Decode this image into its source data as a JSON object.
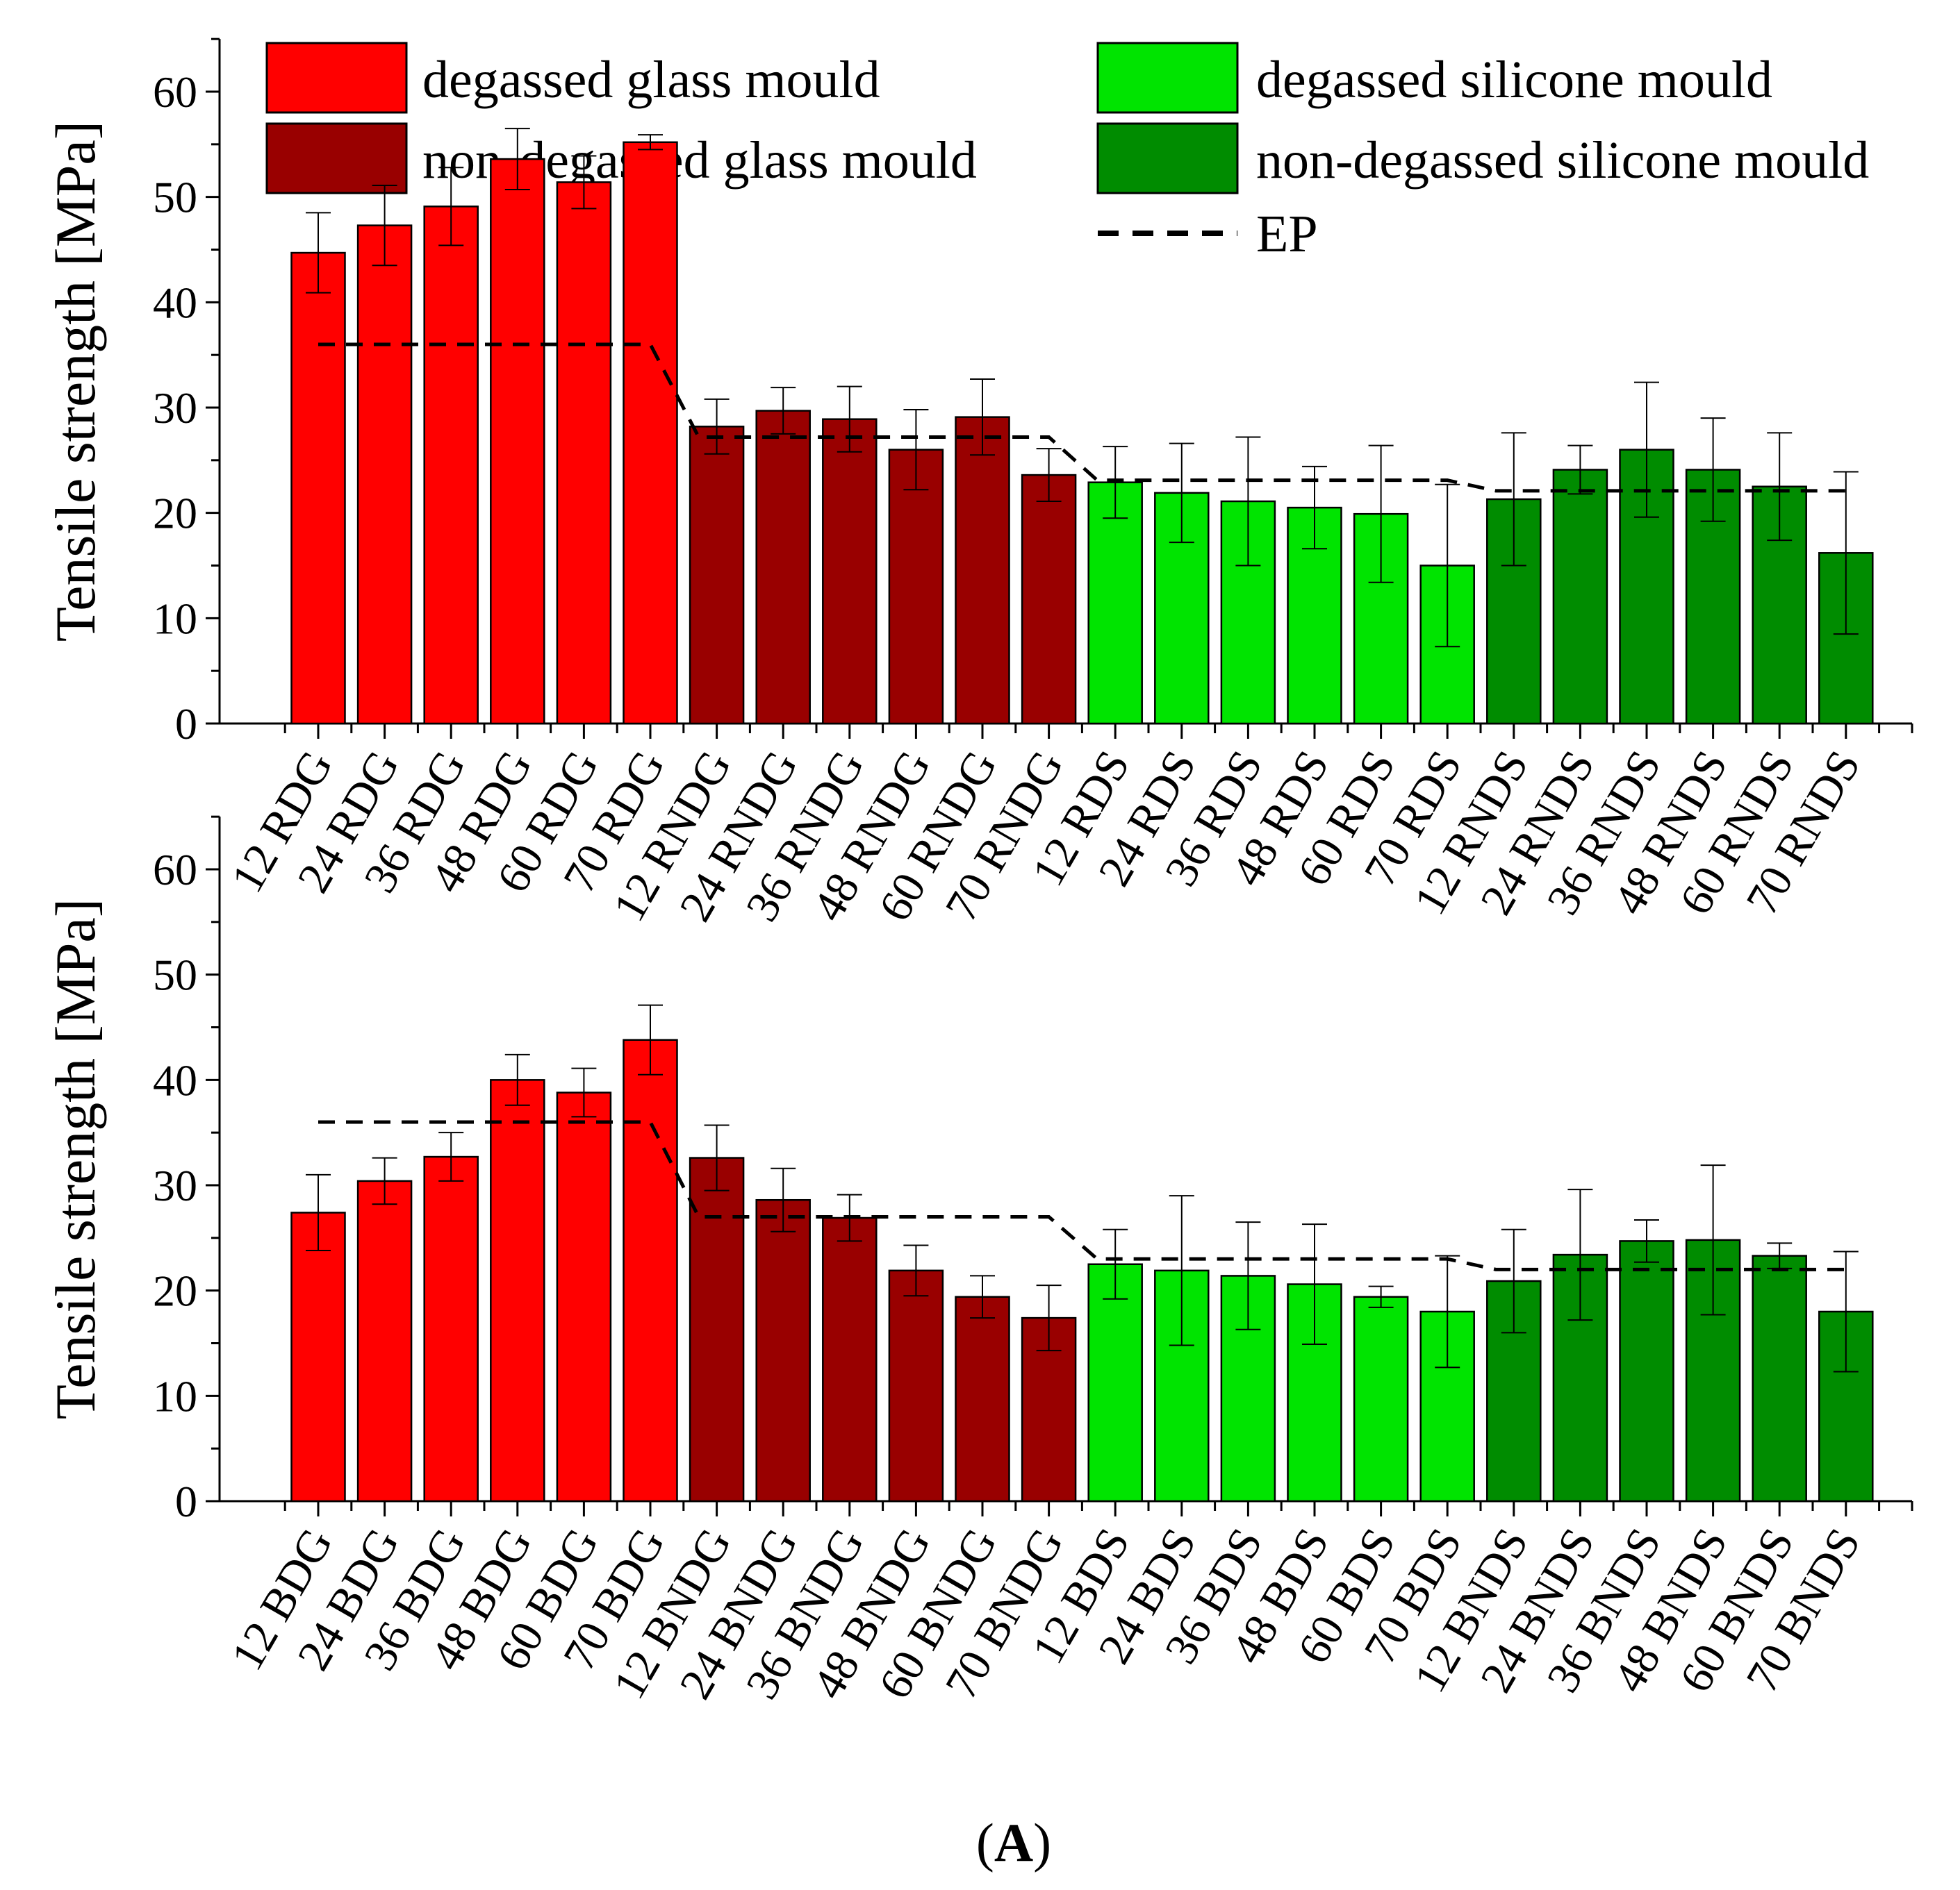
{
  "legend": {
    "items": [
      {
        "key": "DG",
        "label": "degassed glass mould",
        "color": "#ff0000"
      },
      {
        "key": "NDG",
        "label": "non-degassed glass mould",
        "color": "#990000"
      },
      {
        "key": "DS",
        "label": "degassed silicone mould",
        "color": "#00e400"
      },
      {
        "key": "NDS",
        "label": "non-degassed silicone mould",
        "color": "#008c00"
      }
    ],
    "ep_label": "EP"
  },
  "caption": {
    "open": "(",
    "letter": "A",
    "close": ")"
  },
  "chart_data": [
    {
      "type": "bar",
      "ylabel": "Tensile strength [MPa]",
      "xlabel": "",
      "ylim": [
        0,
        65
      ],
      "yticks": [
        "0",
        "10",
        "20",
        "30",
        "40",
        "50",
        "60"
      ],
      "categories": [
        "12 RDG",
        "24 RDG",
        "36 RDG",
        "48 RDG",
        "60 RDG",
        "70 RDG",
        "12 RNDG",
        "24 RNDG",
        "36 RNDG",
        "48 RNDG",
        "60 RNDG",
        "70 RNDG",
        "12 RDS",
        "24 RDS",
        "36 RDS",
        "48 RDS",
        "60 RDS",
        "70 RDS",
        "12 RNDS",
        "24 RNDS",
        "36 RNDS",
        "48 RNDS",
        "60 RNDS",
        "70 RNDS"
      ],
      "groups": [
        "DG",
        "DG",
        "DG",
        "DG",
        "DG",
        "DG",
        "NDG",
        "NDG",
        "NDG",
        "NDG",
        "NDG",
        "NDG",
        "DS",
        "DS",
        "DS",
        "DS",
        "DS",
        "DS",
        "NDS",
        "NDS",
        "NDS",
        "NDS",
        "NDS",
        "NDS"
      ],
      "values": [
        44.7,
        47.3,
        49.1,
        53.6,
        51.4,
        55.2,
        28.2,
        29.7,
        28.9,
        26.0,
        29.1,
        23.6,
        22.9,
        21.9,
        21.1,
        20.5,
        19.9,
        15.0,
        21.3,
        24.1,
        26.0,
        24.1,
        22.5,
        16.2
      ],
      "errors": [
        3.8,
        3.8,
        3.7,
        2.9,
        2.5,
        0.7,
        2.6,
        2.2,
        3.1,
        3.8,
        3.6,
        2.5,
        3.4,
        4.7,
        6.1,
        3.9,
        6.5,
        7.7,
        6.3,
        2.3,
        6.4,
        4.9,
        5.1,
        7.7
      ],
      "ep_line": {
        "name": "EP",
        "steps": [
          36.0,
          27.2,
          23.1,
          22.1
        ]
      }
    },
    {
      "type": "bar",
      "ylabel": "Tensile strength [MPa]",
      "xlabel": "",
      "ylim": [
        0,
        65
      ],
      "yticks": [
        "0",
        "10",
        "20",
        "30",
        "40",
        "50",
        "60"
      ],
      "categories": [
        "12 BDG",
        "24 BDG",
        "36 BDG",
        "48 BDG",
        "60 BDG",
        "70 BDG",
        "12 BNDG",
        "24 BNDG",
        "36 BNDG",
        "48 BNDG",
        "60 BNDG",
        "70 BNDG",
        "12 BDS",
        "24 BDS",
        "36 BDS",
        "48 BDS",
        "60 BDS",
        "70 BDS",
        "12 BNDS",
        "24 BNDS",
        "36 BNDS",
        "48 BNDS",
        "60 BNDS",
        "70 BNDS"
      ],
      "groups": [
        "DG",
        "DG",
        "DG",
        "DG",
        "DG",
        "DG",
        "NDG",
        "NDG",
        "NDG",
        "NDG",
        "NDG",
        "NDG",
        "DS",
        "DS",
        "DS",
        "DS",
        "DS",
        "DS",
        "NDS",
        "NDS",
        "NDS",
        "NDS",
        "NDS",
        "NDS"
      ],
      "values": [
        27.4,
        30.4,
        32.7,
        40.0,
        38.8,
        43.8,
        32.6,
        28.6,
        26.9,
        21.9,
        19.4,
        17.4,
        22.5,
        21.9,
        21.4,
        20.6,
        19.4,
        18.0,
        20.9,
        23.4,
        24.7,
        24.8,
        23.3,
        18.0
      ],
      "errors": [
        3.6,
        2.2,
        2.3,
        2.4,
        2.3,
        3.3,
        3.1,
        3.0,
        2.2,
        2.4,
        2.0,
        3.1,
        3.3,
        7.1,
        5.1,
        5.7,
        1.0,
        5.3,
        4.9,
        6.2,
        2.0,
        7.1,
        1.2,
        5.7
      ],
      "ep_line": {
        "name": "EP",
        "steps": [
          36.0,
          27.0,
          23.0,
          22.0
        ]
      }
    }
  ]
}
